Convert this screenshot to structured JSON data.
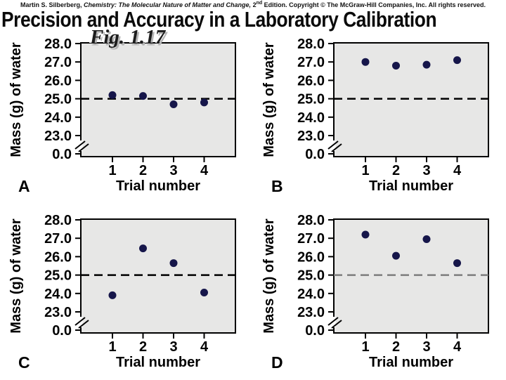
{
  "header": {
    "credit_prefix": "Martin S. Silberberg, ",
    "credit_book": "Chemistry: The Molecular Nature of Matter and Change,",
    "credit_edition_num": " 2",
    "credit_edition_sup": "nd",
    "credit_rest": " Edition.  Copyright © The McGraw-Hill Companies, Inc. All rights reserved.",
    "title": "Precision and Accuracy in a Laboratory Calibration",
    "figure_label": "Fig. 1.17"
  },
  "colors": {
    "point": "#16164a",
    "plot_bg": "#e7e7e6",
    "axis": "#000000",
    "page_bg": "#ffffff"
  },
  "chart_data": [
    {
      "type": "scatter",
      "panel": "A",
      "x": [
        1,
        2,
        3,
        4
      ],
      "y": [
        25.2,
        25.15,
        24.7,
        24.8
      ],
      "xlabel": "Trial number",
      "ylabel": "Mass (g) of water",
      "yticks": [
        28.0,
        27.0,
        26.0,
        25.0,
        24.0,
        23.0
      ],
      "ytick_labels": [
        "28.0",
        "27.0",
        "26.0",
        "25.0",
        "24.0",
        "23.0"
      ],
      "break_tick_label": "0.0",
      "xtick_labels": [
        "1",
        "2",
        "3",
        "4"
      ],
      "reference_line": 25.0,
      "reference_line_color": "#000000",
      "axis_break": true,
      "ylim_display": [
        23.0,
        28.0
      ],
      "grid": false,
      "legend": "none"
    },
    {
      "type": "scatter",
      "panel": "B",
      "x": [
        1,
        2,
        3,
        4
      ],
      "y": [
        27.0,
        26.8,
        26.85,
        27.1
      ],
      "xlabel": "Trial number",
      "ylabel": "Mass (g) of water",
      "yticks": [
        28.0,
        27.0,
        26.0,
        25.0,
        24.0,
        23.0
      ],
      "ytick_labels": [
        "28.0",
        "27.0",
        "26.0",
        "25.0",
        "24.0",
        "23.0"
      ],
      "break_tick_label": "0.0",
      "xtick_labels": [
        "1",
        "2",
        "3",
        "4"
      ],
      "reference_line": 25.0,
      "reference_line_color": "#000000",
      "axis_break": true,
      "ylim_display": [
        23.0,
        28.0
      ],
      "grid": false,
      "legend": "none"
    },
    {
      "type": "scatter",
      "panel": "C",
      "x": [
        1,
        2,
        3,
        4
      ],
      "y": [
        23.9,
        26.45,
        25.65,
        24.05
      ],
      "xlabel": "Trial number",
      "ylabel": "Mass (g) of water",
      "yticks": [
        28.0,
        27.0,
        26.0,
        25.0,
        24.0,
        23.0
      ],
      "ytick_labels": [
        "28.0",
        "27.0",
        "26.0",
        "25.0",
        "24.0",
        "23.0"
      ],
      "break_tick_label": "0.0",
      "xtick_labels": [
        "1",
        "2",
        "3",
        "4"
      ],
      "reference_line": 25.0,
      "reference_line_color": "#000000",
      "axis_break": true,
      "ylim_display": [
        23.0,
        28.0
      ],
      "grid": false,
      "legend": "none"
    },
    {
      "type": "scatter",
      "panel": "D",
      "x": [
        1,
        2,
        3,
        4
      ],
      "y": [
        27.2,
        26.05,
        26.95,
        25.65
      ],
      "xlabel": "Trial number",
      "ylabel": "Mass (g) of water",
      "yticks": [
        28.0,
        27.0,
        26.0,
        25.0,
        24.0,
        23.0
      ],
      "ytick_labels": [
        "28.0",
        "27.0",
        "26.0",
        "25.0",
        "24.0",
        "23.0"
      ],
      "break_tick_label": "0.0",
      "xtick_labels": [
        "1",
        "2",
        "3",
        "4"
      ],
      "reference_line": 25.0,
      "reference_line_color": "#7d7d7d",
      "axis_break": true,
      "ylim_display": [
        23.0,
        28.0
      ],
      "grid": false,
      "legend": "none"
    }
  ]
}
